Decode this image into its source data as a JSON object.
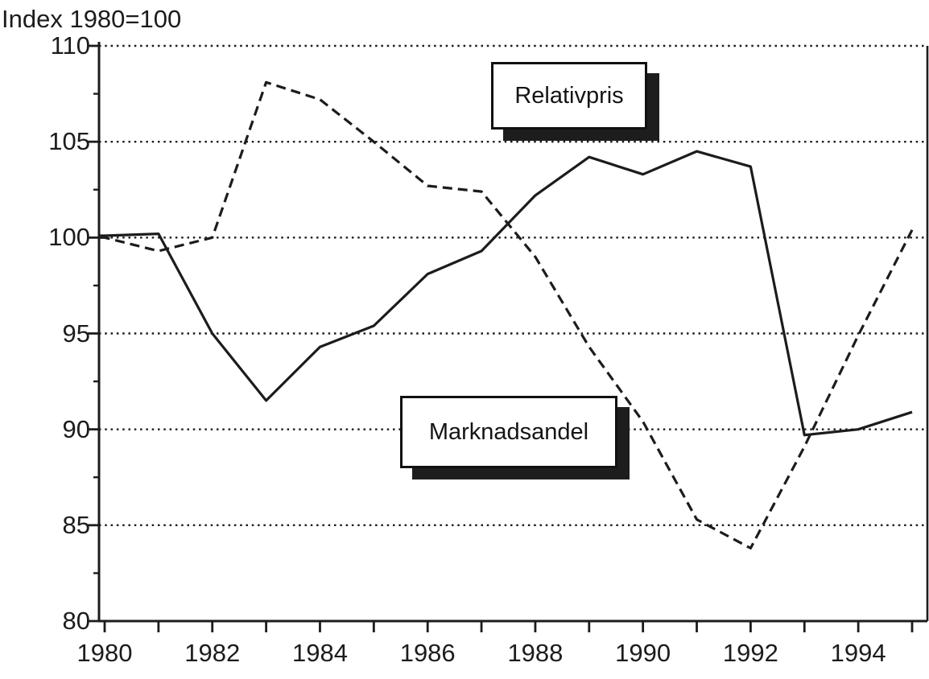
{
  "title": "Index 1980=100",
  "chart_data": {
    "type": "line",
    "title": "Index 1980=100",
    "xlabel": "",
    "ylabel": "Index 1980=100",
    "x": [
      1980,
      1981,
      1982,
      1983,
      1984,
      1985,
      1986,
      1987,
      1988,
      1989,
      1990,
      1991,
      1992,
      1993,
      1994,
      1995
    ],
    "series": [
      {
        "name": "Relativpris",
        "style": "dashed",
        "values": [
          100.0,
          99.3,
          100.0,
          108.1,
          107.2,
          105.0,
          102.7,
          102.4,
          99.0,
          94.3,
          90.4,
          85.3,
          83.8,
          89.1,
          94.9,
          100.4
        ]
      },
      {
        "name": "Marknadsandel",
        "style": "solid",
        "values": [
          100.1,
          100.2,
          95.0,
          91.5,
          94.3,
          95.4,
          98.1,
          99.3,
          102.2,
          104.2,
          103.3,
          104.5,
          103.7,
          89.7,
          90.0,
          90.9
        ]
      }
    ],
    "ylim": [
      80,
      110
    ],
    "xlim": [
      1980,
      1995
    ],
    "yticks": [
      80,
      85,
      90,
      95,
      100,
      105,
      110
    ],
    "y_minor_ticks": [
      82.5,
      87.5,
      92.5,
      97.5,
      102.5,
      107.5
    ],
    "xticks": [
      1980,
      1981,
      1982,
      1983,
      1984,
      1985,
      1986,
      1987,
      1988,
      1989,
      1990,
      1991,
      1992,
      1993,
      1994,
      1995
    ],
    "xtick_labels": [
      "1980",
      "1982",
      "1984",
      "1986",
      "1988",
      "1990",
      "1992",
      "1994"
    ],
    "grid": "horizontal dotted lines at each major y tick",
    "legend_position": "floating labeled boxes inside plot"
  },
  "annotations": {
    "relativpris_label": "Relativpris",
    "marknadsandel_label": "Marknadsandel"
  },
  "colors": {
    "ink": "#1c1c1c",
    "background": "#ffffff"
  }
}
